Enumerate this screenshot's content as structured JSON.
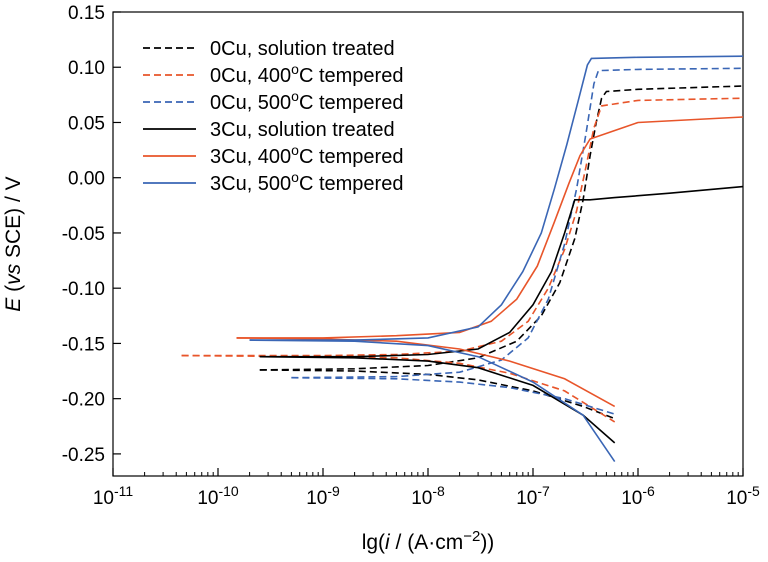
{
  "chart_data": {
    "type": "line",
    "title": "",
    "xlabel_parts": [
      "lg(",
      "i",
      " / (A·cm",
      "−2",
      "))"
    ],
    "ylabel_parts": [
      "E",
      " (",
      "vs",
      " SCE) / V"
    ],
    "x_scale": "log",
    "xlim": [
      1e-11,
      1e-05
    ],
    "ylim": [
      -0.27,
      0.15
    ],
    "x_ticks": [
      {
        "base": "10",
        "exp": "-11",
        "value": 1e-11
      },
      {
        "base": "10",
        "exp": "-10",
        "value": 1e-10
      },
      {
        "base": "10",
        "exp": "-9",
        "value": 1e-09
      },
      {
        "base": "10",
        "exp": "-8",
        "value": 1e-08
      },
      {
        "base": "10",
        "exp": "-7",
        "value": 1e-07
      },
      {
        "base": "10",
        "exp": "-6",
        "value": 1e-06
      },
      {
        "base": "10",
        "exp": "-5",
        "value": 1e-05
      }
    ],
    "y_ticks": [
      {
        "label": "0.15",
        "value": 0.15
      },
      {
        "label": "0.10",
        "value": 0.1
      },
      {
        "label": "0.05",
        "value": 0.05
      },
      {
        "label": "0.00",
        "value": 0.0
      },
      {
        "label": "-0.05",
        "value": -0.05
      },
      {
        "label": "-0.10",
        "value": -0.1
      },
      {
        "label": "-0.15",
        "value": -0.15
      },
      {
        "label": "-0.20",
        "value": -0.2
      },
      {
        "label": "-0.25",
        "value": -0.25
      }
    ],
    "grid": false,
    "legend_position": "top-left",
    "series": [
      {
        "name_parts": [
          "0Cu, solution treated"
        ],
        "color": "#000000",
        "dash": true,
        "anodic": [
          [
            2.5e-10,
            -0.174
          ],
          [
            2e-09,
            -0.173
          ],
          [
            1e-08,
            -0.17
          ],
          [
            3e-08,
            -0.163
          ],
          [
            7e-08,
            -0.148
          ],
          [
            1.2e-07,
            -0.125
          ],
          [
            1.8e-07,
            -0.095
          ],
          [
            2.5e-07,
            -0.055
          ],
          [
            3e-07,
            -0.02
          ],
          [
            3.5e-07,
            0.02
          ],
          [
            4e-07,
            0.05
          ],
          [
            4.5e-07,
            0.072
          ],
          [
            5e-07,
            0.078
          ],
          [
            1e-06,
            0.08
          ],
          [
            1e-05,
            0.083
          ]
        ],
        "cathodic": [
          [
            2.5e-10,
            -0.174
          ],
          [
            2e-09,
            -0.175
          ],
          [
            1e-08,
            -0.178
          ],
          [
            3e-08,
            -0.183
          ],
          [
            1e-07,
            -0.193
          ],
          [
            3e-07,
            -0.207
          ],
          [
            6e-07,
            -0.218
          ]
        ]
      },
      {
        "name_parts": [
          "0Cu, 400",
          "o",
          "C tempered"
        ],
        "color": "#e8552a",
        "dash": true,
        "anodic": [
          [
            4.5e-11,
            -0.161
          ],
          [
            1e-09,
            -0.161
          ],
          [
            5e-09,
            -0.16
          ],
          [
            2e-08,
            -0.157
          ],
          [
            5e-08,
            -0.148
          ],
          [
            9e-08,
            -0.13
          ],
          [
            1.4e-07,
            -0.1
          ],
          [
            2e-07,
            -0.065
          ],
          [
            2.6e-07,
            -0.03
          ],
          [
            3.2e-07,
            0.01
          ],
          [
            3.8e-07,
            0.045
          ],
          [
            4.5e-07,
            0.065
          ],
          [
            1e-06,
            0.07
          ],
          [
            1e-05,
            0.072
          ]
        ],
        "cathodic": [
          [
            4.5e-11,
            -0.161
          ],
          [
            1e-09,
            -0.162
          ],
          [
            5e-09,
            -0.163
          ],
          [
            2e-08,
            -0.168
          ],
          [
            6e-08,
            -0.177
          ],
          [
            2e-07,
            -0.193
          ],
          [
            6e-07,
            -0.221
          ]
        ]
      },
      {
        "name_parts": [
          "0Cu, 500",
          "o",
          "C tempered"
        ],
        "color": "#3a66b5",
        "dash": true,
        "anodic": [
          [
            5e-10,
            -0.181
          ],
          [
            5e-09,
            -0.18
          ],
          [
            2e-08,
            -0.176
          ],
          [
            5e-08,
            -0.165
          ],
          [
            9e-08,
            -0.145
          ],
          [
            1.4e-07,
            -0.11
          ],
          [
            2e-07,
            -0.06
          ],
          [
            2.6e-07,
            -0.01
          ],
          [
            3.2e-07,
            0.04
          ],
          [
            3.8e-07,
            0.085
          ],
          [
            4.2e-07,
            0.097
          ],
          [
            1e-06,
            0.098
          ],
          [
            1e-05,
            0.099
          ]
        ],
        "cathodic": [
          [
            5e-10,
            -0.181
          ],
          [
            5e-09,
            -0.182
          ],
          [
            2e-08,
            -0.185
          ],
          [
            6e-08,
            -0.19
          ],
          [
            2e-07,
            -0.2
          ],
          [
            6e-07,
            -0.214
          ]
        ]
      },
      {
        "name_parts": [
          "3Cu, solution treated"
        ],
        "color": "#000000",
        "dash": false,
        "anodic": [
          [
            2.5e-10,
            -0.162
          ],
          [
            2e-09,
            -0.162
          ],
          [
            1e-08,
            -0.16
          ],
          [
            3e-08,
            -0.155
          ],
          [
            6e-08,
            -0.14
          ],
          [
            1e-07,
            -0.115
          ],
          [
            1.5e-07,
            -0.085
          ],
          [
            2e-07,
            -0.05
          ],
          [
            2.5e-07,
            -0.02
          ],
          [
            3.5e-07,
            -0.02
          ],
          [
            6e-07,
            -0.018
          ],
          [
            2e-06,
            -0.014
          ],
          [
            1e-05,
            -0.008
          ]
        ],
        "cathodic": [
          [
            2.5e-10,
            -0.162
          ],
          [
            2e-09,
            -0.163
          ],
          [
            1e-08,
            -0.166
          ],
          [
            3e-08,
            -0.172
          ],
          [
            1e-07,
            -0.188
          ],
          [
            3e-07,
            -0.215
          ],
          [
            6e-07,
            -0.24
          ]
        ]
      },
      {
        "name_parts": [
          "3Cu, 400",
          "o",
          "C tempered"
        ],
        "color": "#e8552a",
        "dash": false,
        "anodic": [
          [
            1.5e-10,
            -0.145
          ],
          [
            1e-09,
            -0.145
          ],
          [
            5e-09,
            -0.143
          ],
          [
            2e-08,
            -0.14
          ],
          [
            4e-08,
            -0.13
          ],
          [
            7e-08,
            -0.11
          ],
          [
            1.1e-07,
            -0.08
          ],
          [
            1.6e-07,
            -0.04
          ],
          [
            2.2e-07,
            -0.005
          ],
          [
            2.8e-07,
            0.02
          ],
          [
            3.5e-07,
            0.035
          ],
          [
            1e-06,
            0.05
          ],
          [
            1e-05,
            0.055
          ]
        ],
        "cathodic": [
          [
            1.5e-10,
            -0.145
          ],
          [
            1e-09,
            -0.146
          ],
          [
            5e-09,
            -0.148
          ],
          [
            2e-08,
            -0.155
          ],
          [
            6e-08,
            -0.166
          ],
          [
            2e-07,
            -0.182
          ],
          [
            6e-07,
            -0.207
          ]
        ]
      },
      {
        "name_parts": [
          "3Cu, 500",
          "o",
          "C tempered"
        ],
        "color": "#3a66b5",
        "dash": false,
        "anodic": [
          [
            2e-10,
            -0.147
          ],
          [
            2e-09,
            -0.147
          ],
          [
            1e-08,
            -0.145
          ],
          [
            3e-08,
            -0.135
          ],
          [
            5e-08,
            -0.115
          ],
          [
            8e-08,
            -0.085
          ],
          [
            1.2e-07,
            -0.05
          ],
          [
            1.6e-07,
            -0.01
          ],
          [
            2.1e-07,
            0.03
          ],
          [
            2.7e-07,
            0.07
          ],
          [
            3.3e-07,
            0.102
          ],
          [
            3.6e-07,
            0.108
          ],
          [
            1e-06,
            0.109
          ],
          [
            1e-05,
            0.11
          ]
        ],
        "cathodic": [
          [
            2e-10,
            -0.147
          ],
          [
            2e-09,
            -0.148
          ],
          [
            1e-08,
            -0.152
          ],
          [
            3e-08,
            -0.162
          ],
          [
            1e-07,
            -0.185
          ],
          [
            3e-07,
            -0.215
          ],
          [
            6e-07,
            -0.257
          ]
        ]
      }
    ]
  }
}
